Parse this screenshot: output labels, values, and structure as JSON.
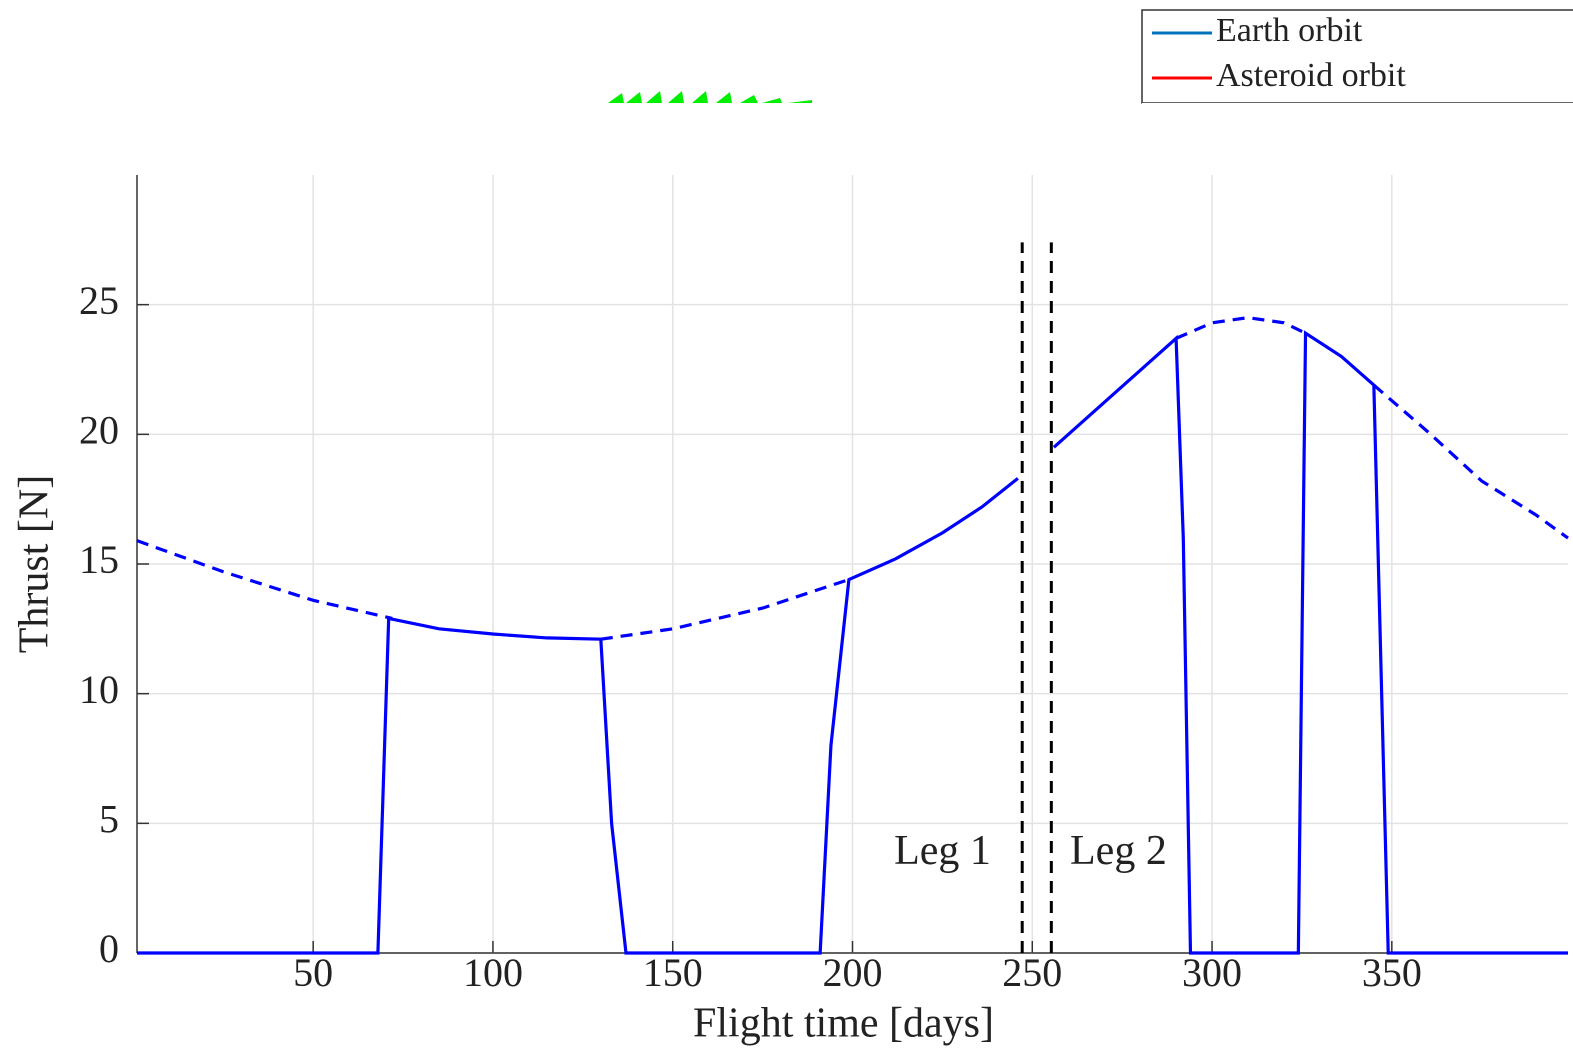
{
  "chart_data": [
    {
      "type": "legend-only",
      "series": [
        {
          "name": "Earth orbit",
          "color": "#0072bd"
        },
        {
          "name": "Asteroid orbit",
          "color": "#ff0000"
        }
      ]
    },
    {
      "type": "line",
      "xlabel": "Flight time [days]",
      "ylabel": "Thrust [N]",
      "xlim": [
        1,
        399
      ],
      "ylim": [
        0,
        30
      ],
      "xticks": [
        50,
        100,
        150,
        200,
        250,
        300,
        350
      ],
      "yticks": [
        0,
        5,
        10,
        15,
        20,
        25
      ],
      "grid": true,
      "series": [
        {
          "color": "#0000ff",
          "dash": true,
          "x": [
            1,
            25,
            50,
            72,
            100,
            130,
            150,
            175,
            199,
            250,
            290,
            300,
            310,
            320,
            326,
            336,
            345,
            360,
            375,
            390,
            399
          ],
          "values": [
            15.9,
            14.7,
            13.6,
            12.9,
            null,
            12.1,
            12.5,
            13.3,
            14.4,
            null,
            23.7,
            24.3,
            24.5,
            24.3,
            23.9,
            null,
            21.9,
            20.1,
            18.2,
            16.9,
            16.0
          ]
        },
        {
          "color": "#0000ff",
          "dash": false,
          "x": [
            1,
            68,
            71,
            85,
            100,
            115,
            130,
            133,
            137,
            191,
            194,
            199,
            212,
            225,
            236,
            246,
            251,
            256,
            273,
            290,
            292,
            294,
            324,
            326,
            336,
            345,
            349,
            399
          ],
          "values": [
            0,
            0,
            12.9,
            12.5,
            12.3,
            12.15,
            12.1,
            5,
            0,
            0,
            8,
            14.4,
            15.2,
            16.2,
            17.2,
            18.3,
            null,
            19.5,
            21.6,
            23.7,
            16,
            0,
            0,
            23.9,
            23.0,
            21.9,
            0,
            0
          ]
        }
      ],
      "vlines": [
        {
          "x": 247.2,
          "y": [
            0,
            27.4
          ]
        },
        {
          "x": 255.3,
          "y": [
            0,
            27.4
          ]
        }
      ],
      "annotations": [
        {
          "text": "Leg 1",
          "x": 238.5,
          "y": 3.8,
          "anchor": "end"
        },
        {
          "text": "Leg 2",
          "x": 260.5,
          "y": 3.8,
          "anchor": "start"
        }
      ]
    }
  ]
}
